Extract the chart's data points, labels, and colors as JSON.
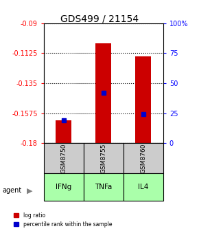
{
  "title": "GDS499 / 21154",
  "samples": [
    "GSM8750",
    "GSM8755",
    "GSM8760"
  ],
  "agents": [
    "IFNg",
    "TNFa",
    "IL4"
  ],
  "bar_base": -0.18,
  "bar_tops": [
    -0.163,
    -0.105,
    -0.115
  ],
  "percentile_values": [
    -0.163,
    -0.142,
    -0.158
  ],
  "percentile_ranks": [
    20,
    40,
    25
  ],
  "ylim_left": [
    -0.18,
    -0.09
  ],
  "ylim_right": [
    0,
    100
  ],
  "yticks_left": [
    -0.18,
    -0.1575,
    -0.135,
    -0.1125,
    -0.09
  ],
  "yticks_right": [
    0,
    25,
    50,
    75,
    100
  ],
  "ytick_labels_left": [
    "-0.18",
    "-0.1575",
    "-0.135",
    "-0.1125",
    "-0.09"
  ],
  "ytick_labels_right": [
    "0",
    "25",
    "50",
    "75",
    "100%"
  ],
  "bar_color": "#cc0000",
  "blue_marker_color": "#0000cc",
  "agent_bg_color": "#aaffaa",
  "sample_bg_color": "#cccccc",
  "legend_log_ratio": "log ratio",
  "legend_percentile": "percentile rank within the sample",
  "agent_label": "agent"
}
